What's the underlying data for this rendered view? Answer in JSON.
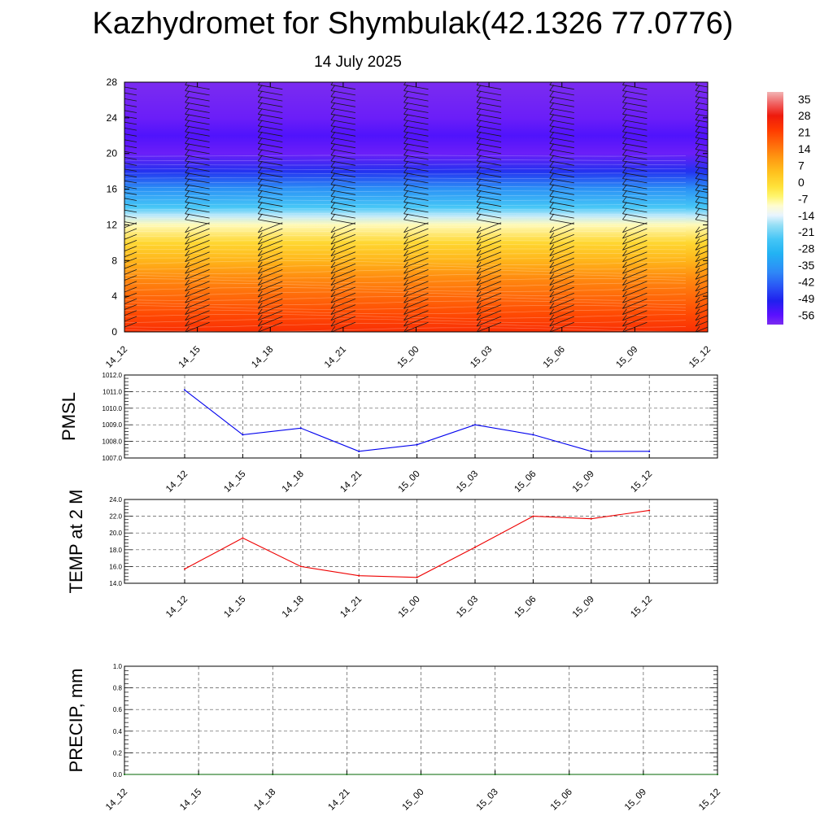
{
  "title": "Kazhydromet for Shymbulak(42.1326 77.0776)",
  "subtitle": "14 July 2025",
  "colors": {
    "pmsl_line": "#0000ee",
    "temp_line": "#ee0000",
    "precip_line": "#006400",
    "frame": "#000000",
    "grid": "#555555"
  },
  "chart_data": [
    {
      "type": "heatmap",
      "title": "",
      "xlabel": "",
      "ylabel": "",
      "x_tick_labels": [
        "14_12",
        "14_15",
        "14_18",
        "14_21",
        "15_00",
        "15_03",
        "15_06",
        "15_09",
        "15_12"
      ],
      "y_ticks": [
        0,
        4,
        8,
        12,
        16,
        20,
        24,
        28
      ],
      "ylim": [
        0,
        28
      ],
      "colorbar_labels": [
        "35",
        "28",
        "21",
        "14",
        "7",
        "0",
        "-7",
        "-14",
        "-21",
        "-28",
        "-35",
        "-42",
        "-49",
        "-56"
      ],
      "colorbar_range": [
        -60,
        38
      ],
      "vertical_temperature_profile": [
        {
          "level": 0,
          "value": 24
        },
        {
          "level": 2,
          "value": 20
        },
        {
          "level": 4,
          "value": 16
        },
        {
          "level": 6,
          "value": 12
        },
        {
          "level": 8,
          "value": 6
        },
        {
          "level": 10,
          "value": 0
        },
        {
          "level": 12,
          "value": -9
        },
        {
          "level": 13,
          "value": -16
        },
        {
          "level": 14,
          "value": -24
        },
        {
          "level": 16,
          "value": -36
        },
        {
          "level": 18,
          "value": -48
        },
        {
          "level": 20,
          "value": -58
        },
        {
          "level": 22,
          "value": -55
        },
        {
          "level": 24,
          "value": -58
        },
        {
          "level": 28,
          "value": -60
        }
      ],
      "wind_barb_columns": [
        "14_12",
        "14_15",
        "14_18",
        "14_21",
        "15_00",
        "15_03",
        "15_06",
        "15_09",
        "15_12"
      ],
      "grid": false
    },
    {
      "type": "line",
      "title": "",
      "xlabel": "",
      "ylabel": "PMSL",
      "categories": [
        "14_12",
        "14_15",
        "14_18",
        "14_21",
        "15_00",
        "15_03",
        "15_06",
        "15_09",
        "15_12"
      ],
      "series": [
        {
          "values": [
            1011.1,
            1008.4,
            1008.8,
            1007.4,
            1007.8,
            1009.0,
            1008.4,
            1007.4,
            1007.4
          ]
        }
      ],
      "y_ticks": [
        "1007.0",
        "1008.0",
        "1009.0",
        "1010.0",
        "1011.0",
        "1012.0"
      ],
      "ylim": [
        1007.0,
        1012.0
      ],
      "grid": true
    },
    {
      "type": "line",
      "title": "",
      "xlabel": "",
      "ylabel": "TEMP at 2 M",
      "categories": [
        "14_12",
        "14_15",
        "14_18",
        "14_21",
        "15_00",
        "15_03",
        "15_06",
        "15_09",
        "15_12"
      ],
      "series": [
        {
          "values": [
            15.7,
            19.4,
            16.0,
            14.9,
            14.7,
            18.3,
            22.0,
            21.7,
            22.7
          ]
        }
      ],
      "y_ticks": [
        "14.0",
        "16.0",
        "18.0",
        "20.0",
        "22.0",
        "24.0"
      ],
      "ylim": [
        14.0,
        24.0
      ],
      "grid": true
    },
    {
      "type": "line",
      "title": "",
      "xlabel": "",
      "ylabel": "PRECIP, mm",
      "categories": [
        "14_12",
        "14_15",
        "14_18",
        "14_21",
        "15_00",
        "15_03",
        "15_06",
        "15_09",
        "15_12"
      ],
      "series": [
        {
          "values": [
            0,
            0,
            0,
            0,
            0,
            0,
            0,
            0,
            0
          ]
        }
      ],
      "y_ticks": [
        "0.0",
        "0.2",
        "0.4",
        "0.6",
        "0.8",
        "1.0"
      ],
      "ylim": [
        0.0,
        1.0
      ],
      "grid": true
    }
  ]
}
